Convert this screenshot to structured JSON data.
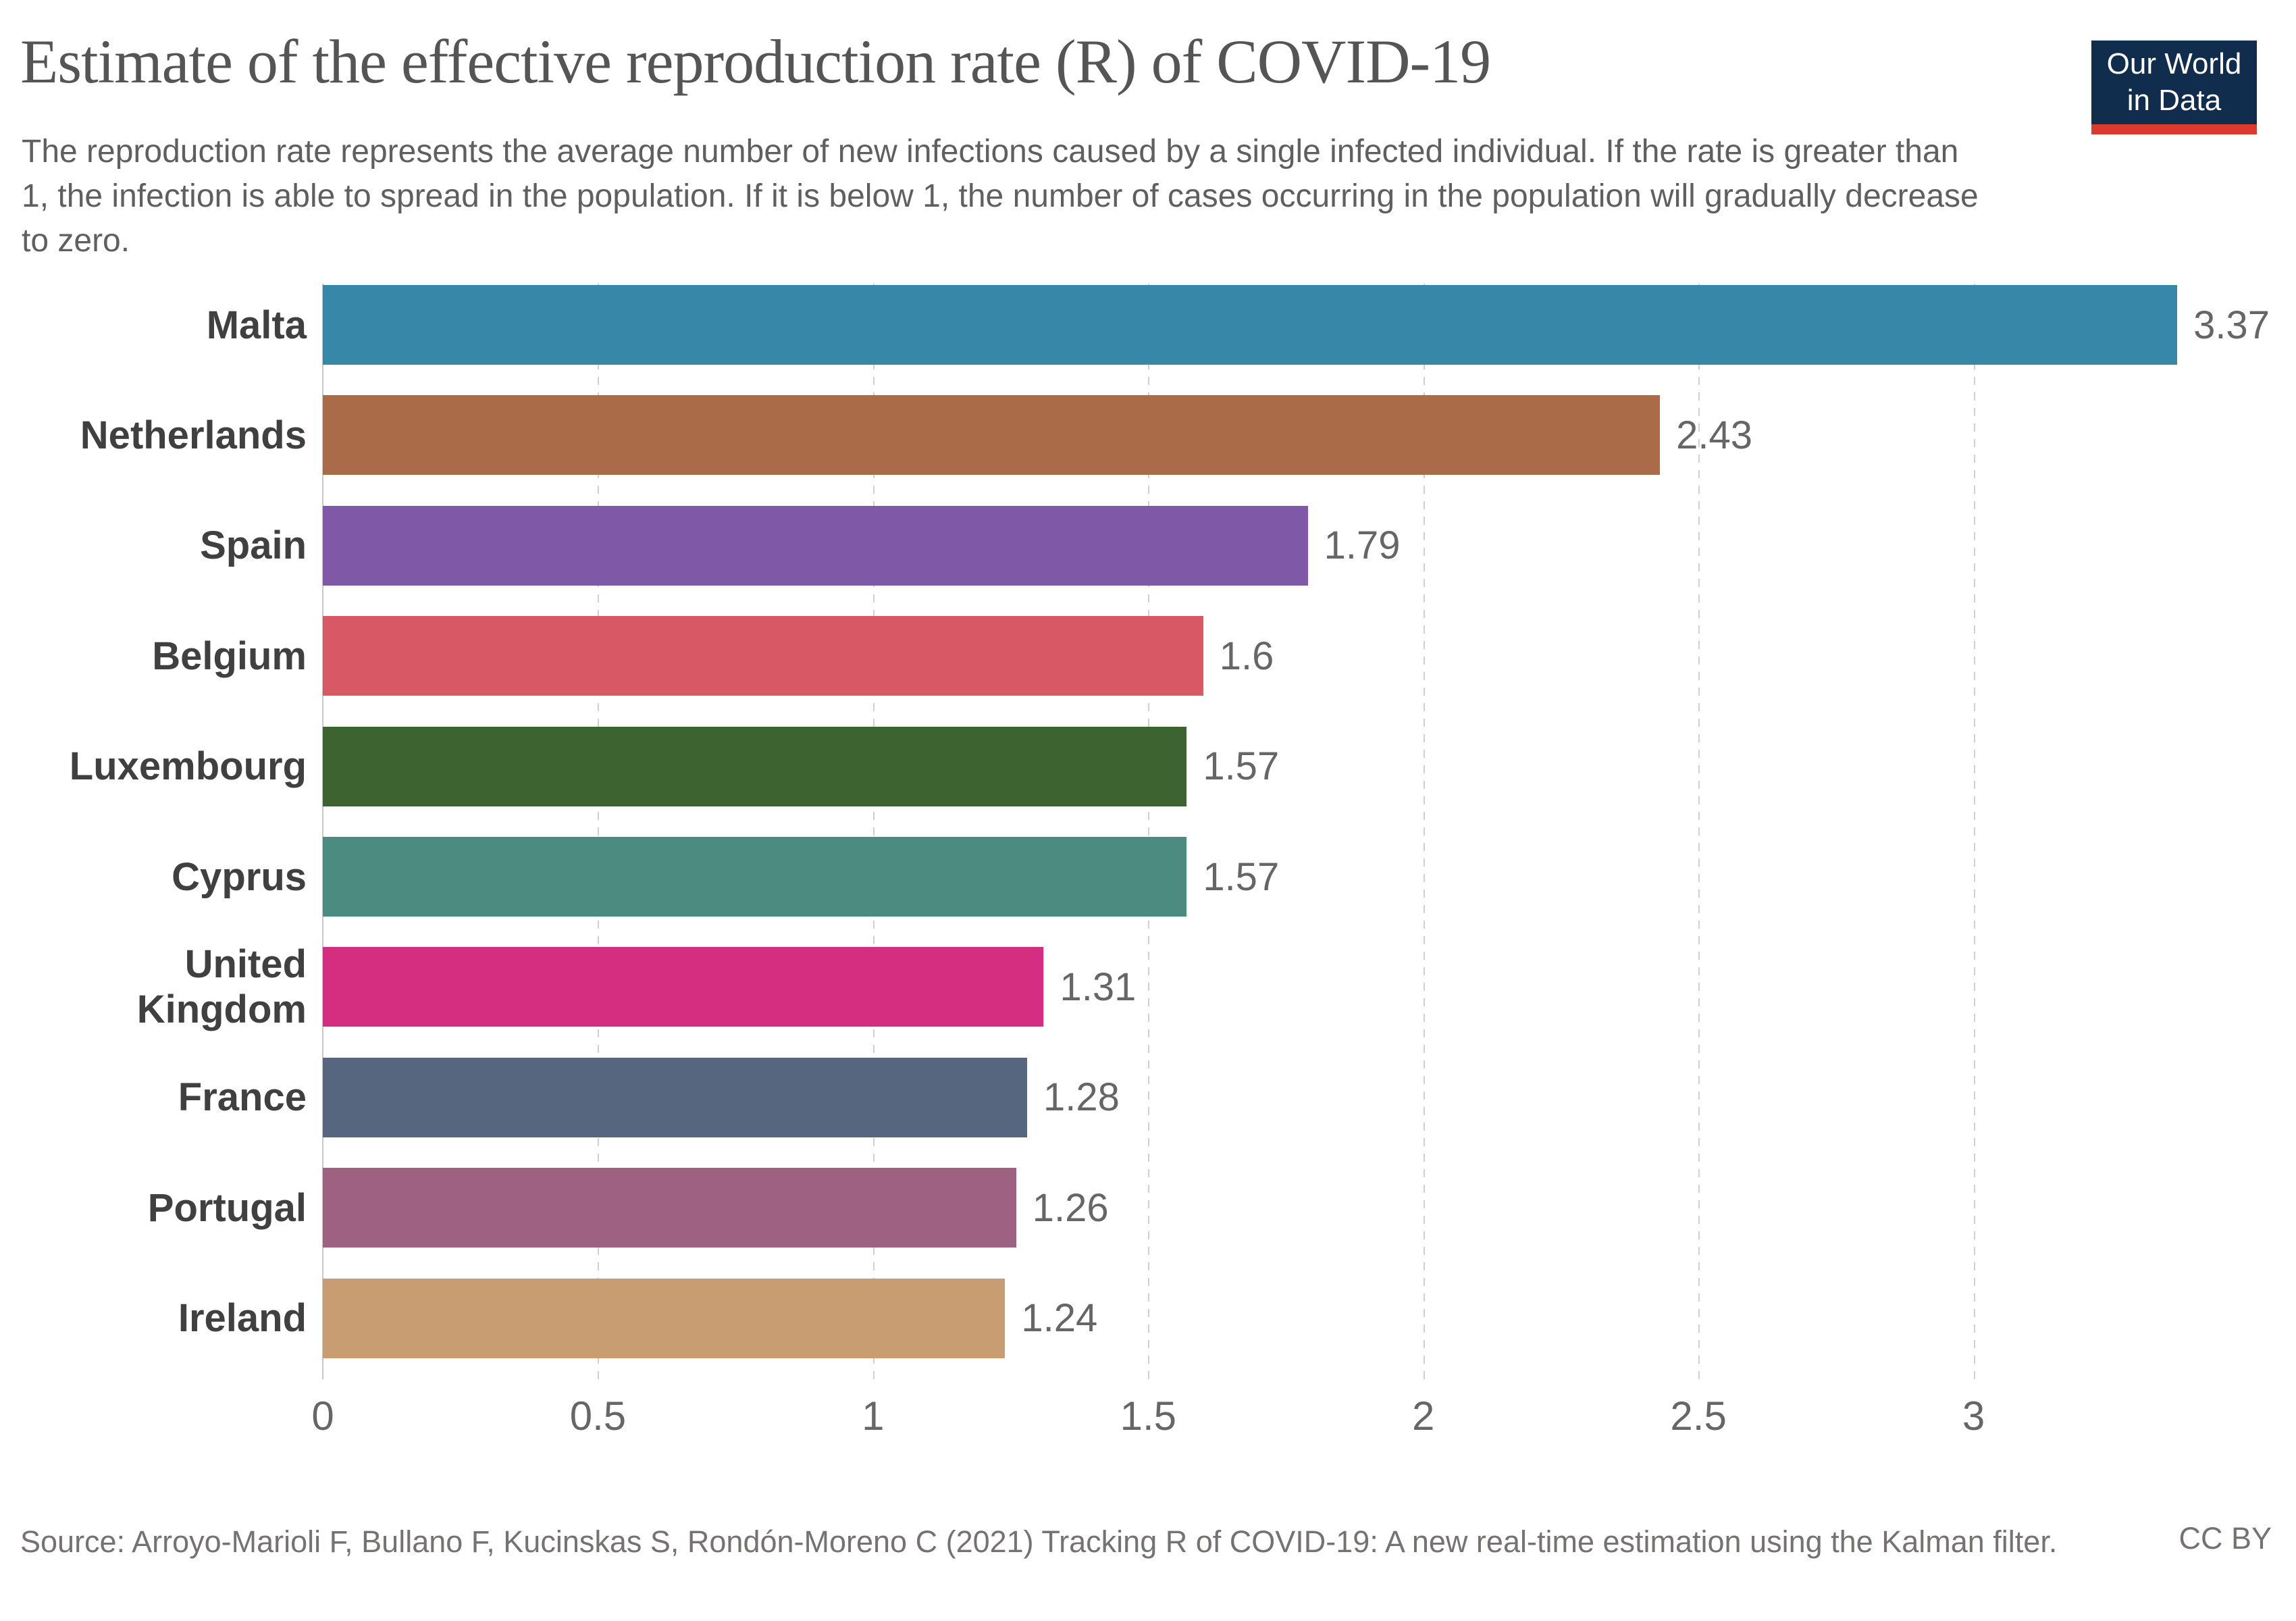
{
  "header": {
    "title": "Estimate of the effective reproduction rate (R) of COVID-19",
    "subtitle": "The reproduction rate represents the average number of new infections caused by a single infected individual. If the rate is greater than 1, the infection is able to spread in the population. If it is below 1, the number of cases occurring in the population will gradually decrease to zero."
  },
  "logo": {
    "line1": "Our World",
    "line2": "in Data",
    "bg_color": "#102d4e",
    "accent_color": "#dc3a2c"
  },
  "chart_data": {
    "type": "bar",
    "orientation": "horizontal",
    "title": "Estimate of the effective reproduction rate (R) of COVID-19",
    "categories": [
      "Malta",
      "Netherlands",
      "Spain",
      "Belgium",
      "Luxembourg",
      "Cyprus",
      "United Kingdom",
      "France",
      "Portugal",
      "Ireland"
    ],
    "values": [
      3.37,
      2.43,
      1.79,
      1.6,
      1.57,
      1.57,
      1.31,
      1.28,
      1.26,
      1.24
    ],
    "value_labels": [
      "3.37",
      "2.43",
      "1.79",
      "1.6",
      "1.57",
      "1.57",
      "1.31",
      "1.28",
      "1.26",
      "1.24"
    ],
    "bar_colors": [
      "#3787a8",
      "#a96b48",
      "#8058a8",
      "#d85866",
      "#3c6330",
      "#4b8b80",
      "#d52e80",
      "#57667f",
      "#9e6182",
      "#c89d72"
    ],
    "xlim": [
      0,
      3.5
    ],
    "x_ticks": [
      0,
      0.5,
      1,
      1.5,
      2,
      2.5,
      3
    ],
    "x_tick_labels": [
      "0",
      "0.5",
      "1",
      "1.5",
      "2",
      "2.5",
      "3"
    ],
    "grid": "vertical-dashed",
    "grid_color": "#d0d0d0",
    "legend": "none"
  },
  "footer": {
    "source": "Source: Arroyo-Marioli F, Bullano F, Kucinskas S, Rondón-Moreno C (2021) Tracking R of COVID-19: A new real-time estimation using the Kalman filter.",
    "license": "CC BY"
  }
}
